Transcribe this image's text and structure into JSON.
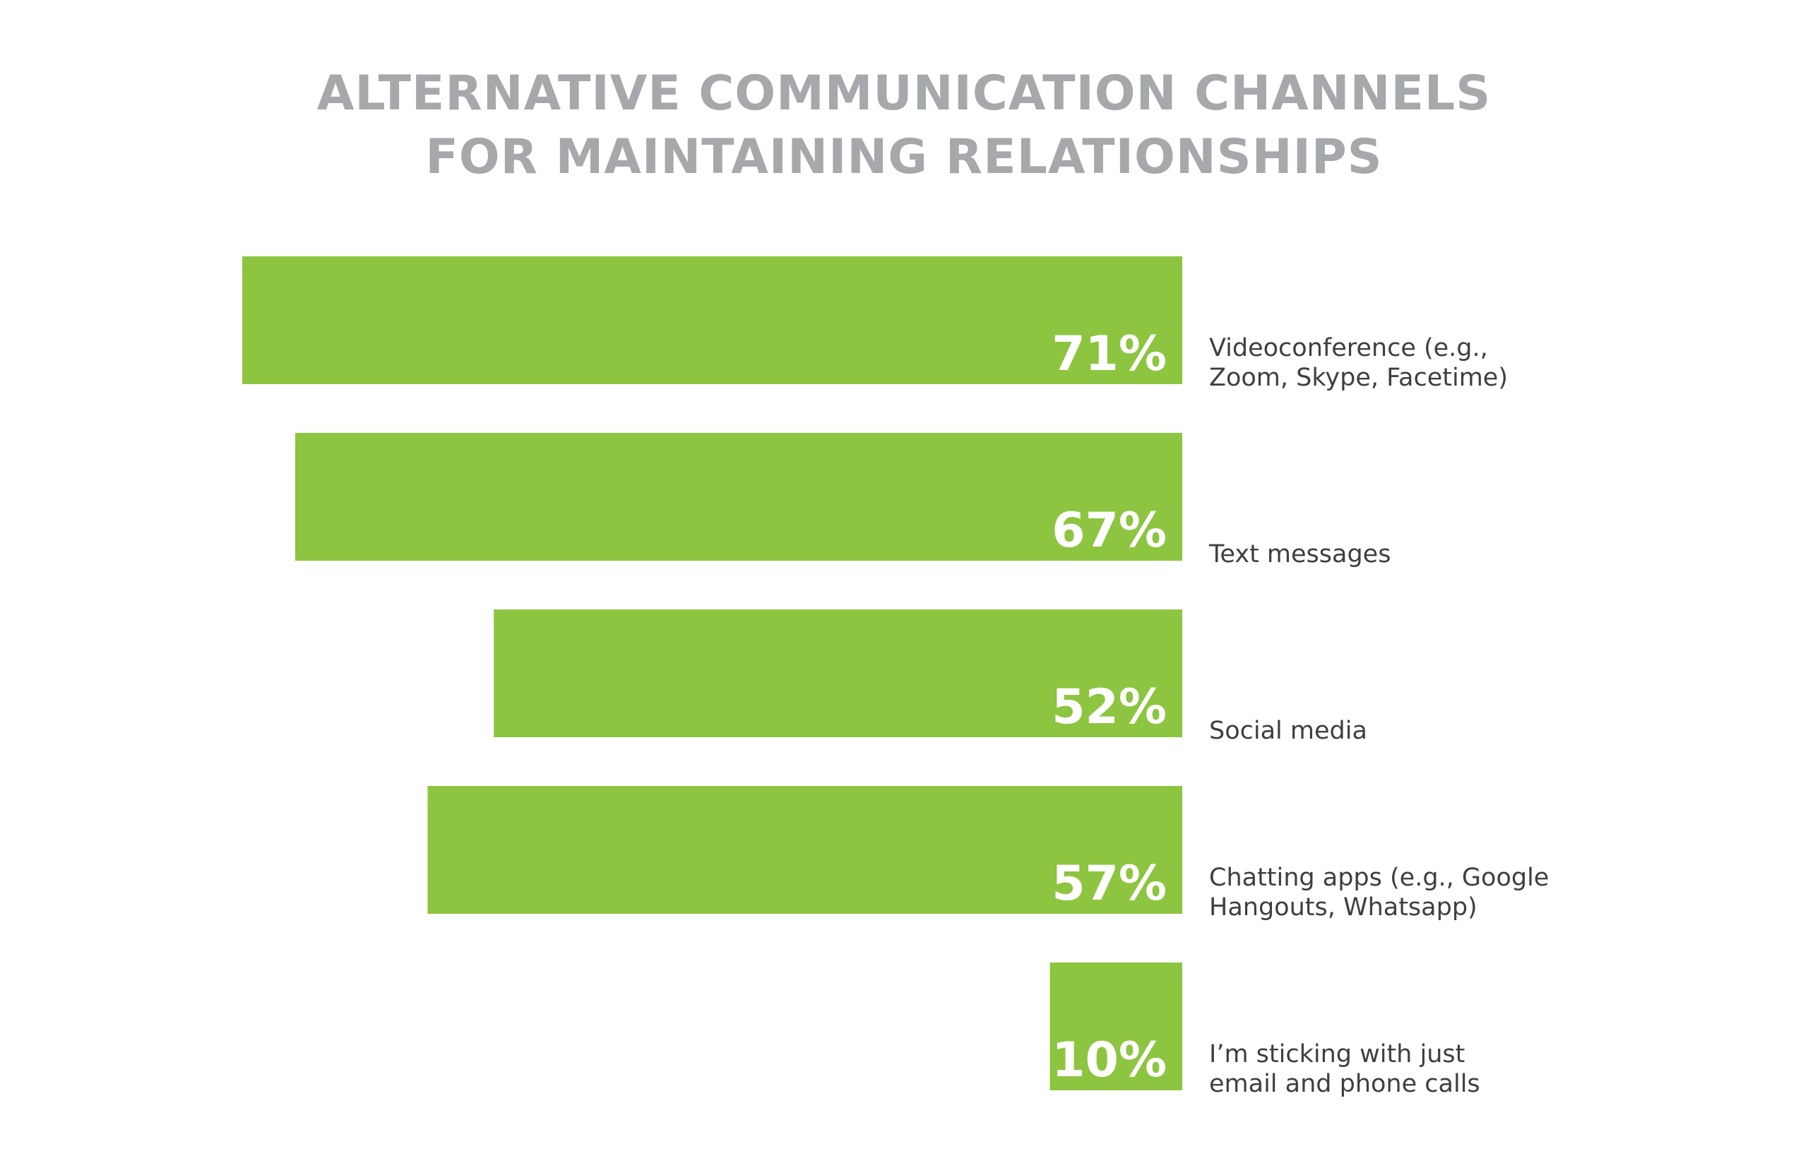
{
  "chart_data": {
    "type": "bar",
    "orientation": "horizontal",
    "title": [
      "ALTERNATIVE COMMUNICATION CHANNELS",
      "FOR MAINTAINING RELATIONSHIPS"
    ],
    "categories": [
      [
        "Videoconference (e.g.,",
        "Zoom, Skype, Facetime)"
      ],
      [
        "Text messages"
      ],
      [
        "Social media"
      ],
      [
        "Chatting apps (e.g., Google",
        "Hangouts, Whatsapp)"
      ],
      [
        "I’m sticking with just",
        "email and phone calls"
      ]
    ],
    "values": [
      71,
      67,
      52,
      57,
      10
    ],
    "value_labels": [
      "71%",
      "67%",
      "52%",
      "57%",
      "10%"
    ],
    "unit": "%",
    "xlim": [
      0,
      71
    ],
    "grid": false,
    "legend": "none",
    "bar_color": "#8dc540",
    "value_label_color": "#ffffff",
    "title_color": "#a6a8ab",
    "label_color": "#3d3f42"
  }
}
